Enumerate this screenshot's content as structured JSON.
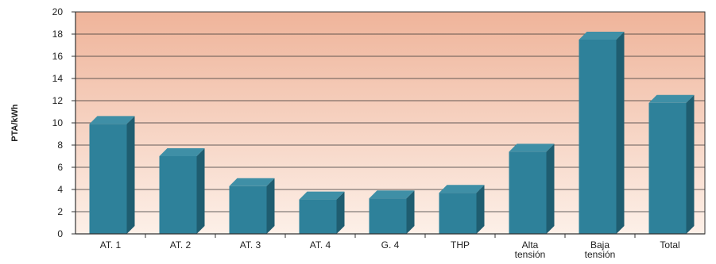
{
  "chart_data": {
    "type": "bar",
    "title": "",
    "xlabel": "",
    "ylabel": "PTA/kWh",
    "ylim": [
      0,
      20
    ],
    "yticks": [
      0,
      2,
      4,
      6,
      8,
      10,
      12,
      14,
      16,
      18,
      20
    ],
    "grid": true,
    "categories": [
      [
        "AT. 1"
      ],
      [
        "AT. 2"
      ],
      [
        "AT. 3"
      ],
      [
        "AT. 4"
      ],
      [
        "G. 4"
      ],
      [
        "THP"
      ],
      [
        "Alta",
        "tensión"
      ],
      [
        "Baja",
        "tensión"
      ],
      [
        "Total"
      ]
    ],
    "values": [
      9.9,
      7.0,
      4.3,
      3.1,
      3.2,
      3.7,
      7.4,
      17.5,
      11.8
    ],
    "colors": {
      "bar_front": "#2e819a",
      "bar_top": "#3f8fa6",
      "bar_side": "#1f5d70",
      "bg_top": "#efb49a",
      "bg_bottom": "#fdf0e8",
      "grid": "#333333",
      "axis": "#333333"
    }
  }
}
